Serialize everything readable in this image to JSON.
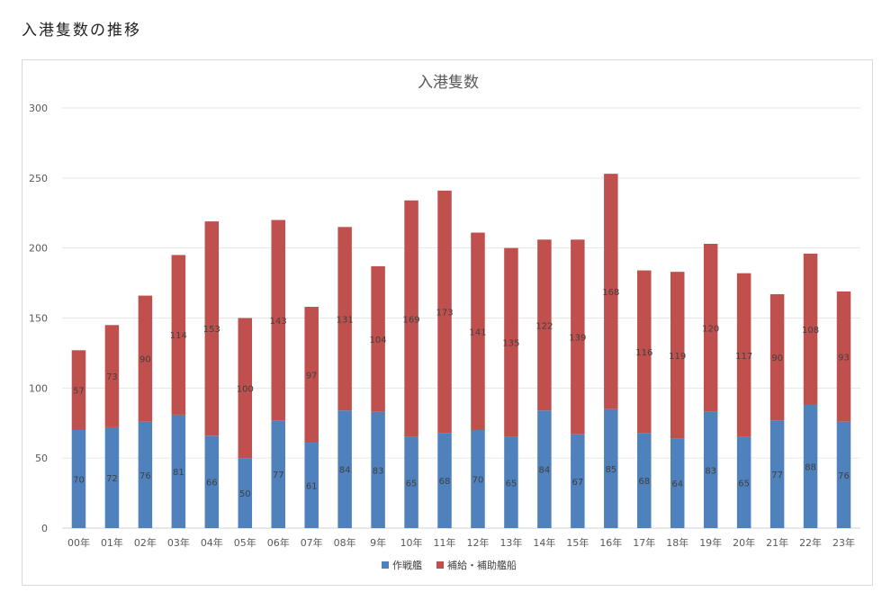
{
  "page": {
    "heading": "入港隻数の推移"
  },
  "chart_data": {
    "type": "bar",
    "stacked": true,
    "title": "入港隻数",
    "xlabel": "",
    "ylabel": "",
    "ylim": [
      0,
      300
    ],
    "yticks": [
      0,
      50,
      100,
      150,
      200,
      250,
      300
    ],
    "grid": true,
    "legend_position": "bottom",
    "categories": [
      "00年",
      "01年",
      "02年",
      "03年",
      "04年",
      "05年",
      "06年",
      "07年",
      "08年",
      "9年",
      "10年",
      "11年",
      "12年",
      "13年",
      "14年",
      "15年",
      "16年",
      "17年",
      "18年",
      "19年",
      "20年",
      "21年",
      "22年",
      "23年"
    ],
    "series": [
      {
        "name": "作戦艦",
        "color": "#4f81bd",
        "values": [
          70,
          72,
          76,
          81,
          66,
          50,
          77,
          61,
          84,
          83,
          65,
          68,
          70,
          65,
          84,
          67,
          85,
          68,
          64,
          83,
          65,
          77,
          88,
          76
        ]
      },
      {
        "name": "補給・補助艦船",
        "color": "#c0504d",
        "values": [
          57,
          73,
          90,
          114,
          153,
          100,
          143,
          97,
          131,
          104,
          169,
          173,
          141,
          135,
          122,
          139,
          168,
          116,
          119,
          120,
          117,
          90,
          108,
          93
        ]
      }
    ]
  }
}
